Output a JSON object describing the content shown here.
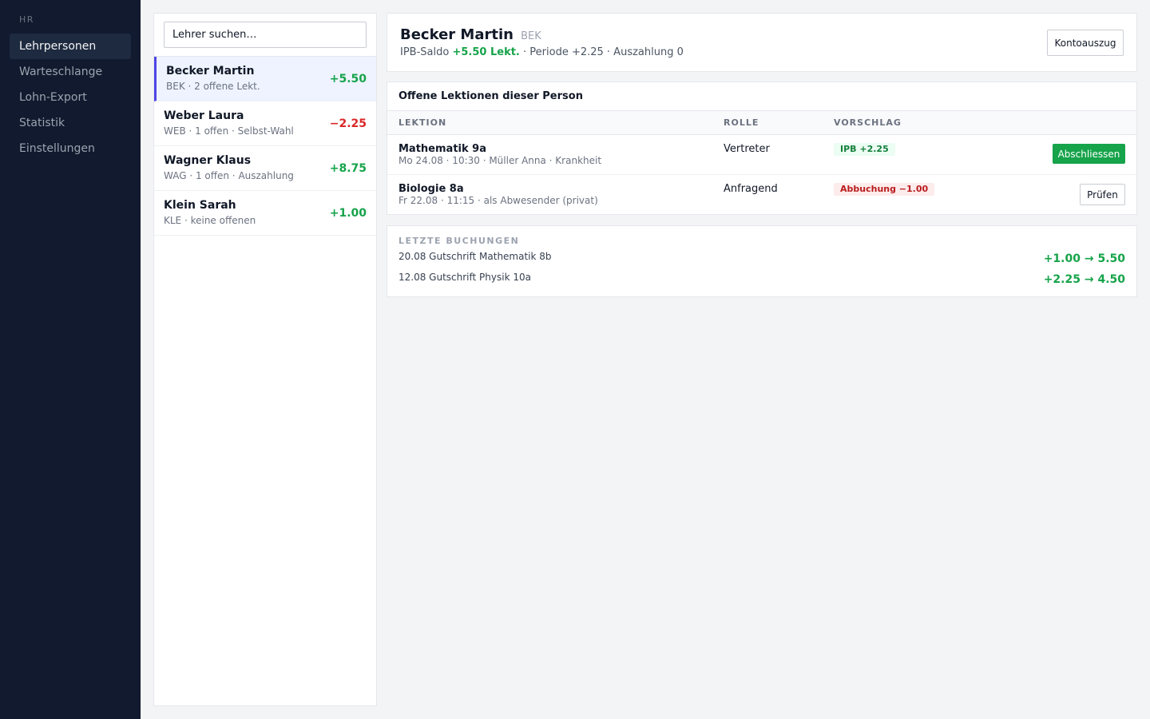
{
  "sidebar": {
    "section": "HR",
    "items": [
      {
        "label": "Lehrpersonen",
        "active": true
      },
      {
        "label": "Warteschlange",
        "active": false
      },
      {
        "label": "Lohn-Export",
        "active": false
      },
      {
        "label": "Statistik",
        "active": false
      },
      {
        "label": "Einstellungen",
        "active": false
      }
    ]
  },
  "search": {
    "placeholder": "Lehrer suchen…"
  },
  "teachers": [
    {
      "name": "Becker Martin",
      "meta": "BEK · 2 offene Lekt.",
      "balance": "+5.50",
      "sign": "pos",
      "active": true
    },
    {
      "name": "Weber Laura",
      "meta": "WEB · 1 offen · Selbst-Wahl",
      "balance": "−2.25",
      "sign": "neg",
      "active": false
    },
    {
      "name": "Wagner Klaus",
      "meta": "WAG · 1 offen · Auszahlung",
      "balance": "+8.75",
      "sign": "pos",
      "active": false
    },
    {
      "name": "Klein Sarah",
      "meta": "KLE · keine offenen",
      "balance": "+1.00",
      "sign": "pos",
      "active": false
    }
  ],
  "detail": {
    "name": "Becker Martin",
    "code": "BEK",
    "saldo_label": "IPB-Saldo",
    "saldo_value": "+5.50 Lekt.",
    "saldo_rest": "· Periode +2.25 · Auszahlung 0",
    "statement_button": "Kontoauszug"
  },
  "lessons": {
    "title": "Offene Lektionen dieser Person",
    "columns": {
      "lesson": "LEKTION",
      "role": "ROLLE",
      "proposal": "VORSCHLAG"
    },
    "rows": [
      {
        "title": "Mathematik 9a",
        "meta": "Mo 24.08 · 10:30 · Müller Anna · Krankheit",
        "role": "Vertreter",
        "badge": "IPB +2.25",
        "action": "Abschliessen"
      },
      {
        "title": "Biologie 8a",
        "meta": "Fr 22.08 · 11:15 · als Abwesender (privat)",
        "role": "Anfragend",
        "badge": "Abbuchung −1.00",
        "action": "Prüfen"
      }
    ]
  },
  "bookings": {
    "title": "LETZTE BUCHUNGEN",
    "rows": [
      {
        "text": "20.08 Gutschrift Mathematik 8b",
        "amount": "+1.00 → 5.50"
      },
      {
        "text": "12.08 Gutschrift Physik 10a",
        "amount": "+2.25 → 4.50"
      }
    ]
  },
  "colors": {
    "sidebar_bg": "#111a2e",
    "accent": "#4f46e5",
    "positive": "#16a34a",
    "negative": "#dc2626"
  }
}
